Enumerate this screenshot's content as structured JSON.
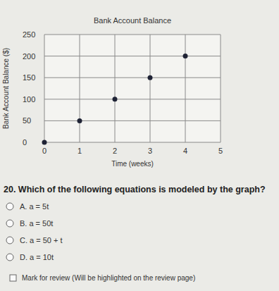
{
  "chart_data": {
    "type": "scatter",
    "title": "Bank Account Balance",
    "x_label": "Time (weeks)",
    "y_label": "Bank Account Balance ($)",
    "x": [
      0,
      1,
      2,
      3,
      4
    ],
    "values": [
      0,
      50,
      100,
      150,
      200
    ],
    "color": "#1f2335",
    "marker": "circle",
    "xlim": [
      0,
      5
    ],
    "xticks": [
      0,
      1,
      2,
      3,
      4,
      5
    ],
    "ylim": [
      0,
      250
    ],
    "yticks": [
      0,
      50,
      100,
      150,
      200,
      250
    ],
    "grid": true
  },
  "question": {
    "text": "20. Which of the following equations is modeled by the graph?",
    "options": [
      "A. a = 5t",
      "B. a = 50t",
      "C. a = 50 + t",
      "D. a = 10t"
    ]
  },
  "review": {
    "label": "Mark for review (Will be highlighted on the review page)"
  }
}
